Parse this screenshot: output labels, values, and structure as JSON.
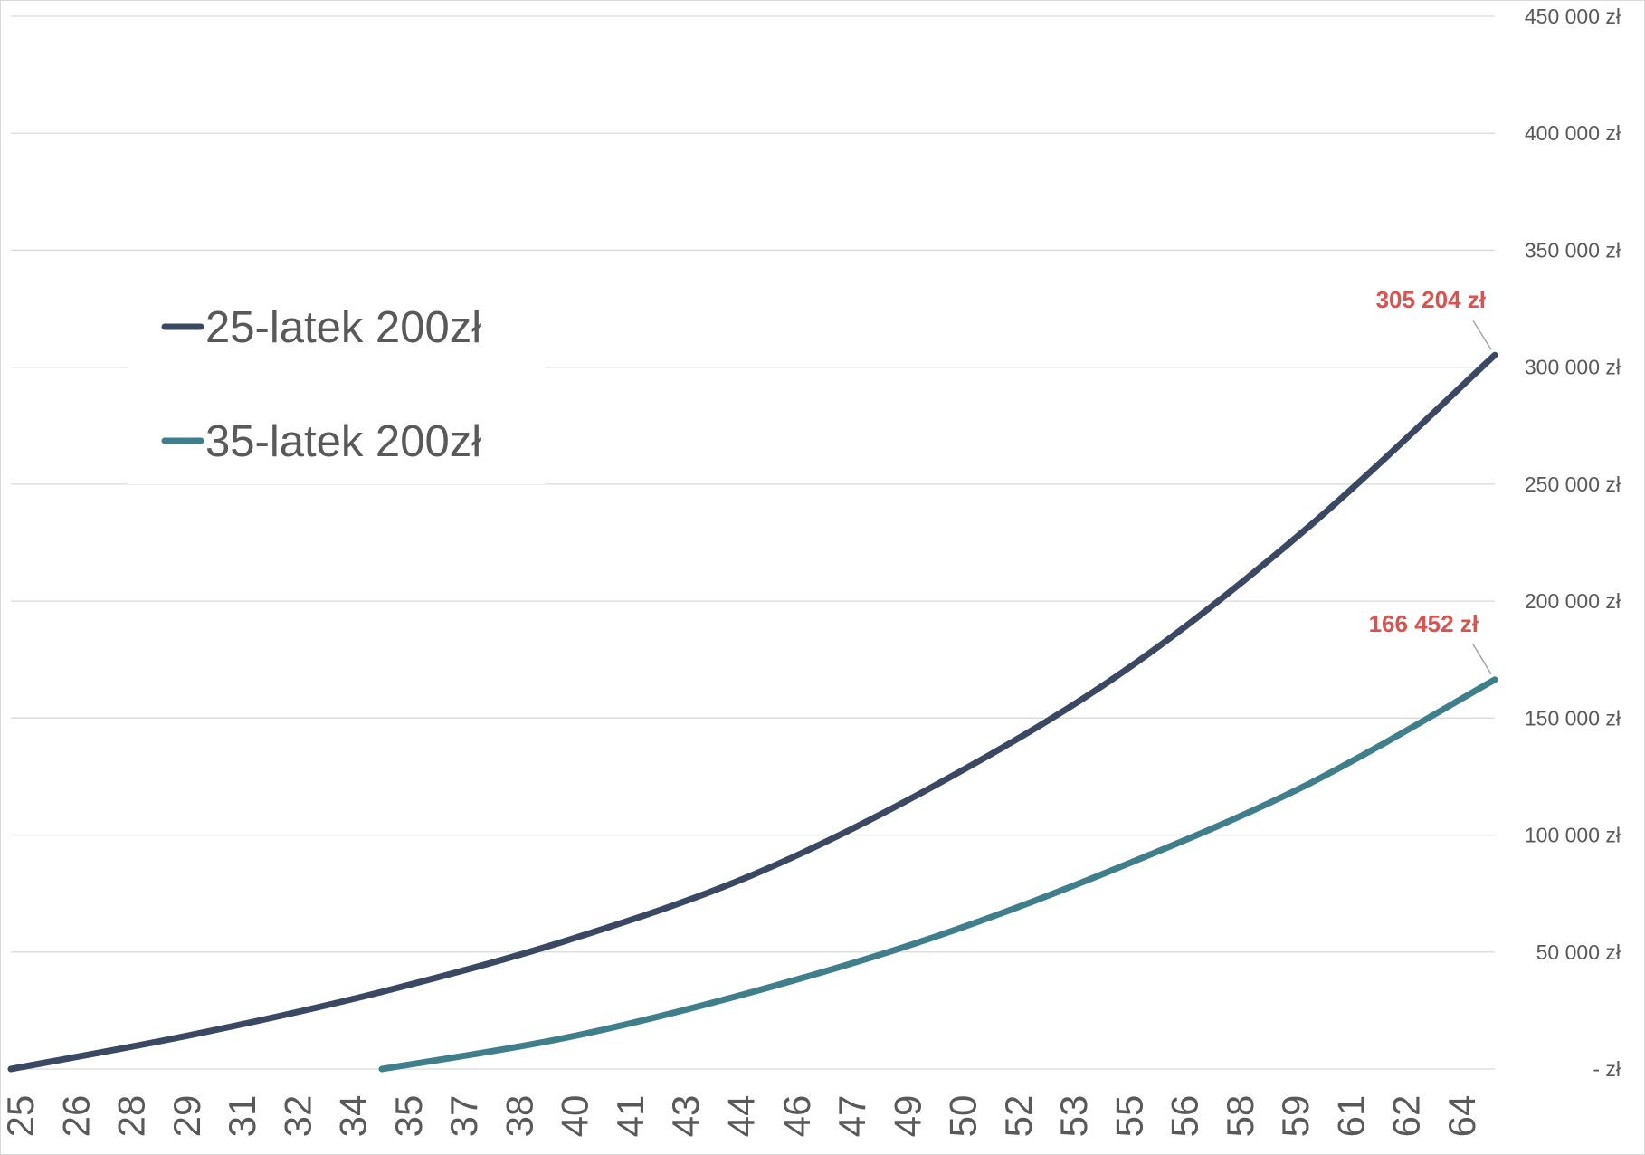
{
  "chart_data": {
    "type": "line",
    "x_tick_labels": [
      "25",
      "26",
      "28",
      "29",
      "31",
      "32",
      "34",
      "35",
      "37",
      "38",
      "40",
      "41",
      "43",
      "44",
      "46",
      "47",
      "49",
      "50",
      "52",
      "53",
      "55",
      "56",
      "58",
      "59",
      "61",
      "62",
      "64"
    ],
    "x_range": [
      25,
      65
    ],
    "ylim": [
      0,
      450000
    ],
    "y_ticks": [
      0,
      50000,
      100000,
      150000,
      200000,
      250000,
      300000,
      350000,
      400000,
      450000
    ],
    "y_tick_labels": [
      "-   zł",
      "50 000 zł",
      "100 000 zł",
      "150 000 zł",
      "200 000 zł",
      "250 000 zł",
      "300 000 zł",
      "350 000 zł",
      "400 000 zł",
      "450 000 zł"
    ],
    "y_axis_side": "right",
    "grid": "horizontal",
    "legend_position": "upper-left, inside plot",
    "series": [
      {
        "name": "25-latek 200zł",
        "color": "#3b4863",
        "x": [
          25,
          30,
          35,
          40,
          45,
          50,
          55,
          60,
          65
        ],
        "y": [
          0,
          15000,
          33000,
          55000,
          83000,
          122000,
          170000,
          232000,
          305204
        ],
        "end_label": "305 204 zł"
      },
      {
        "name": "35-latek 200zł",
        "color": "#3f7f8c",
        "x": [
          35,
          40,
          45,
          50,
          55,
          60,
          65
        ],
        "y": [
          0,
          13500,
          33000,
          57000,
          87000,
          122000,
          166452
        ],
        "end_label": "166 452 zł"
      }
    ],
    "data_label_color": "#d9534f"
  }
}
